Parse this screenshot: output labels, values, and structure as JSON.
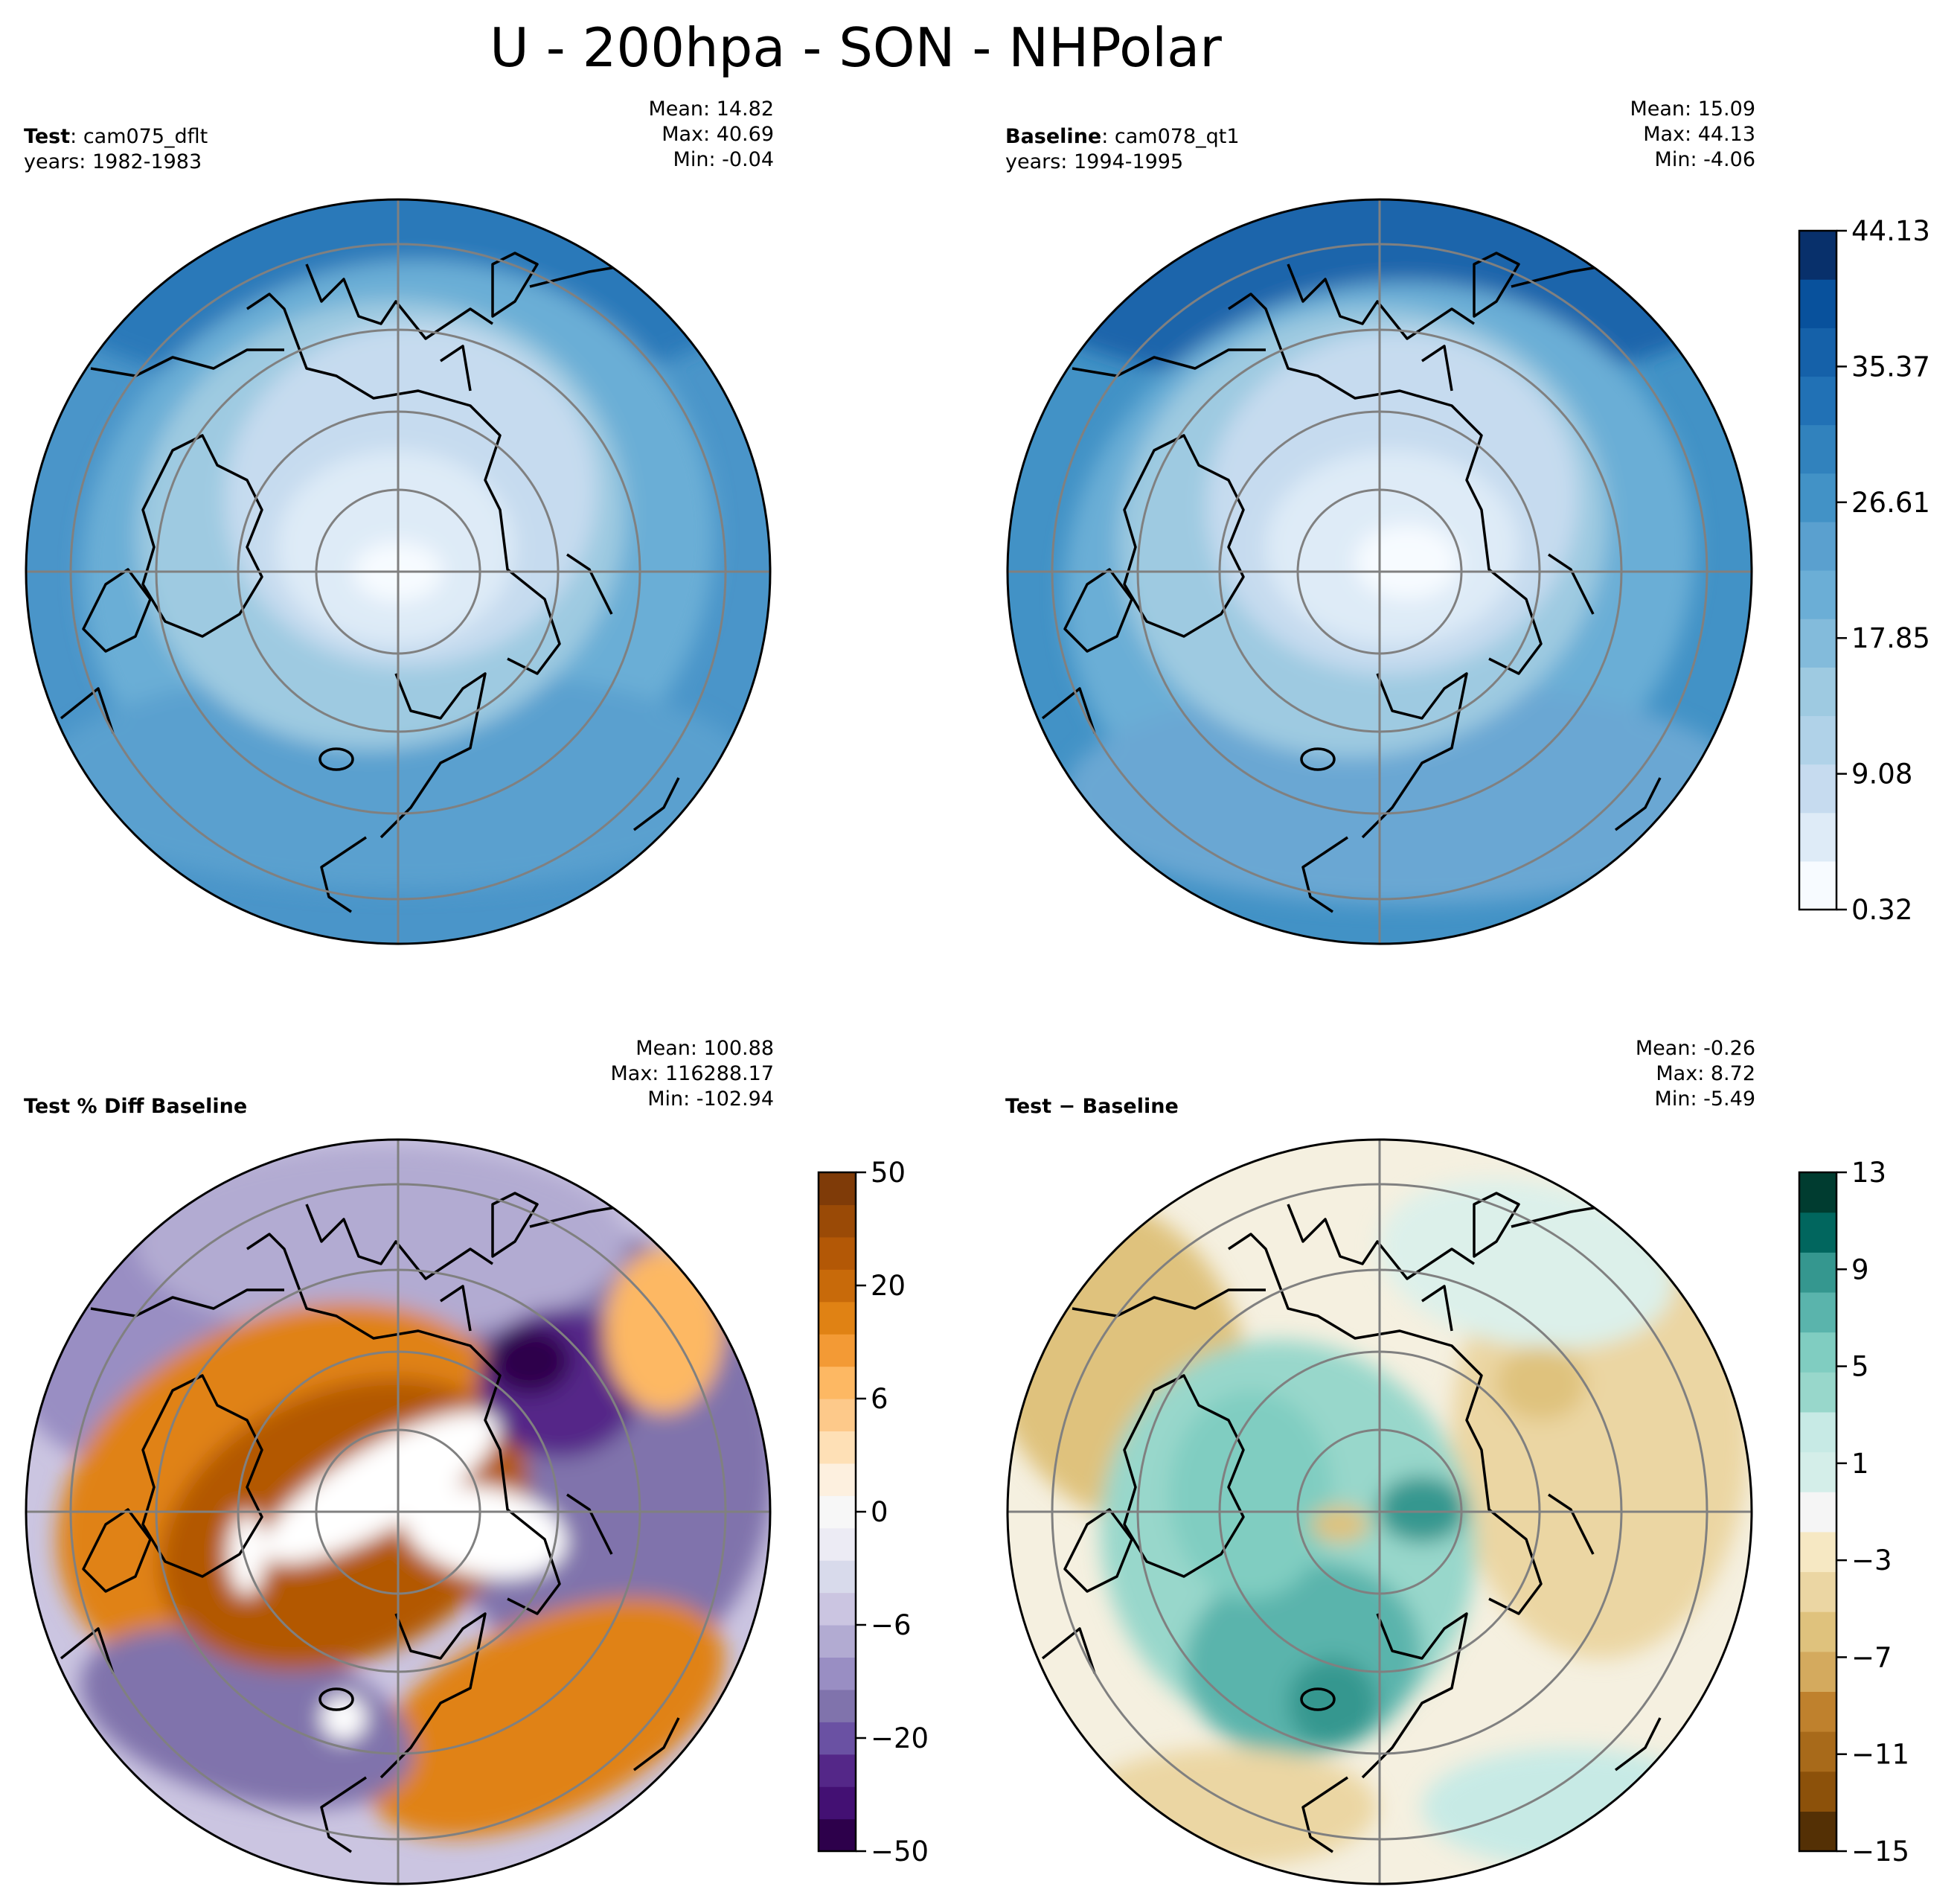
{
  "title": "U - 200hpa - SON - NHPolar",
  "panels": [
    {
      "id": "test",
      "label_bold": "Test",
      "label_sep": ": ",
      "label_name": "cam075_dflt",
      "years": "years: 1982-1983",
      "mean": "Mean: 14.82",
      "max": "Max: 40.69",
      "min": "Min: -0.04"
    },
    {
      "id": "baseline",
      "label_bold": "Baseline",
      "label_sep": ": ",
      "label_name": "cam078_qt1",
      "years": "years: 1994-1995",
      "mean": "Mean: 15.09",
      "max": "Max: 44.13",
      "min": "Min: -4.06"
    },
    {
      "id": "pctdiff",
      "label_bold": "Test % Diff Baseline",
      "mean": "Mean: 100.88",
      "max": "Max: 116288.17",
      "min": "Min: -102.94"
    },
    {
      "id": "diff",
      "label_bold": "Test − Baseline",
      "mean": "Mean: -0.26",
      "max": "Max:  8.72",
      "min": "Min: -5.49"
    }
  ],
  "colorbars": {
    "blues": {
      "ticks": [
        "44.13",
        "35.37",
        "26.61",
        "17.85",
        "9.08",
        "0.32"
      ],
      "colors": [
        "#f7fbff",
        "#deebf7",
        "#c6dbef",
        "#b0d2e8",
        "#9ecae1",
        "#83bbdb",
        "#6baed6",
        "#5aa0cf",
        "#4292c6",
        "#3182bd",
        "#2171b5",
        "#1561a9",
        "#08519c",
        "#08306b"
      ]
    },
    "pct": {
      "ticks": [
        "50",
        "20",
        "6",
        "0",
        "−6",
        "−20",
        "−50"
      ],
      "colors": [
        "#2d004b",
        "#431073",
        "#542788",
        "#6a51a3",
        "#8073ac",
        "#998ec3",
        "#b2abd2",
        "#cbc5e1",
        "#d8daeb",
        "#ecebf4",
        "#f7f7f7",
        "#fdf0df",
        "#fee0b6",
        "#fdc98a",
        "#fdb863",
        "#f39a35",
        "#e08214",
        "#c86a0a",
        "#b35806",
        "#9a4a06",
        "#7f3b08"
      ]
    },
    "brbg": {
      "ticks": [
        "13",
        "9",
        "5",
        "1",
        "−3",
        "−7",
        "−11",
        "−15"
      ],
      "colors": [
        "#543005",
        "#8c510a",
        "#a86a1a",
        "#bf812d",
        "#d4aa5e",
        "#dfc27d",
        "#ebd6a3",
        "#f6e8c3",
        "#f5f5f5",
        "#d4eee9",
        "#c7eae5",
        "#98d7cb",
        "#80cdc1",
        "#5ab4ac",
        "#35978f",
        "#01665e",
        "#003c30"
      ]
    }
  }
}
